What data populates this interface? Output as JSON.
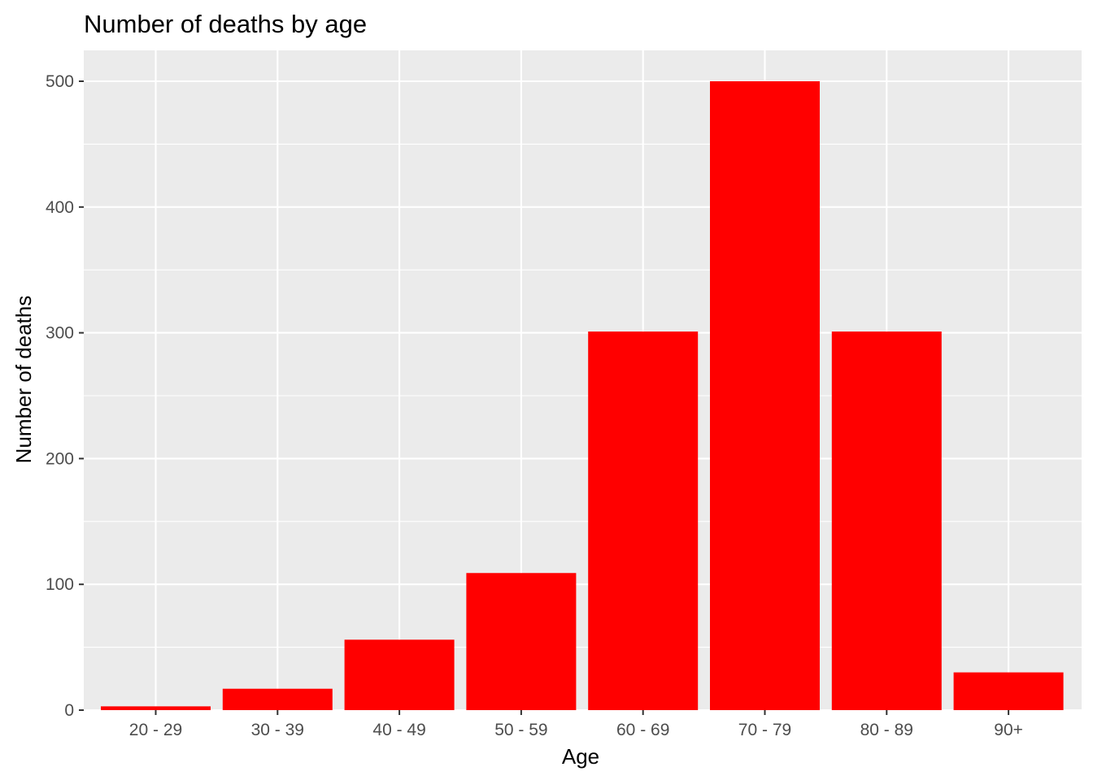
{
  "chart_data": {
    "type": "bar",
    "title": "Number of deaths by age",
    "xlabel": "Age",
    "ylabel": "Number of deaths",
    "categories": [
      "20 - 29",
      "30 - 39",
      "40 - 49",
      "50 - 59",
      "60 - 69",
      "70 - 79",
      "80 - 89",
      "90+"
    ],
    "values": [
      3,
      17,
      56,
      109,
      301,
      500,
      301,
      30
    ],
    "ylim": [
      0,
      500
    ],
    "yticks": [
      0,
      100,
      200,
      300,
      400,
      500
    ],
    "grid": true,
    "legend": "none",
    "colors": {
      "bar": "#ff0000",
      "panel": "#ebebeb",
      "grid": "#ffffff"
    }
  }
}
